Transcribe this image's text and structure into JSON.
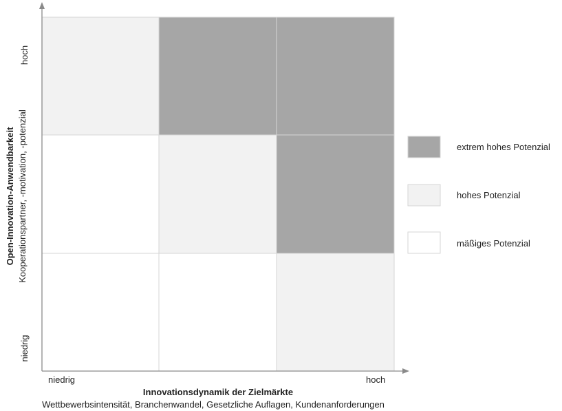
{
  "matrix": {
    "rows": [
      [
        "hohes",
        "extrem",
        "extrem"
      ],
      [
        "maessig",
        "hohes",
        "extrem"
      ],
      [
        "maessig",
        "maessig",
        "hohes"
      ]
    ]
  },
  "x_axis": {
    "title": "Innovationsdynamik der Zielmärkte",
    "subtitle": "Wettbewerbsintensität, Branchenwandel, Gesetzliche Auflagen, Kundenanforderungen",
    "low_label": "niedrig",
    "high_label": "hoch"
  },
  "y_axis": {
    "title": "Open-Innovation-Anwendbarkeit",
    "subtitle": "Kooperationspartner, -motivation, -potenzial",
    "low_label": "niedrig",
    "high_label": "hoch"
  },
  "legend": [
    {
      "key": "extrem",
      "label": "extrem hohes Potenzial",
      "color": "#a6a6a6"
    },
    {
      "key": "hohes",
      "label": "hohes Potenzial",
      "color": "#f2f2f2"
    },
    {
      "key": "maessig",
      "label": "mäßiges Potenzial",
      "color": "#ffffff"
    }
  ]
}
